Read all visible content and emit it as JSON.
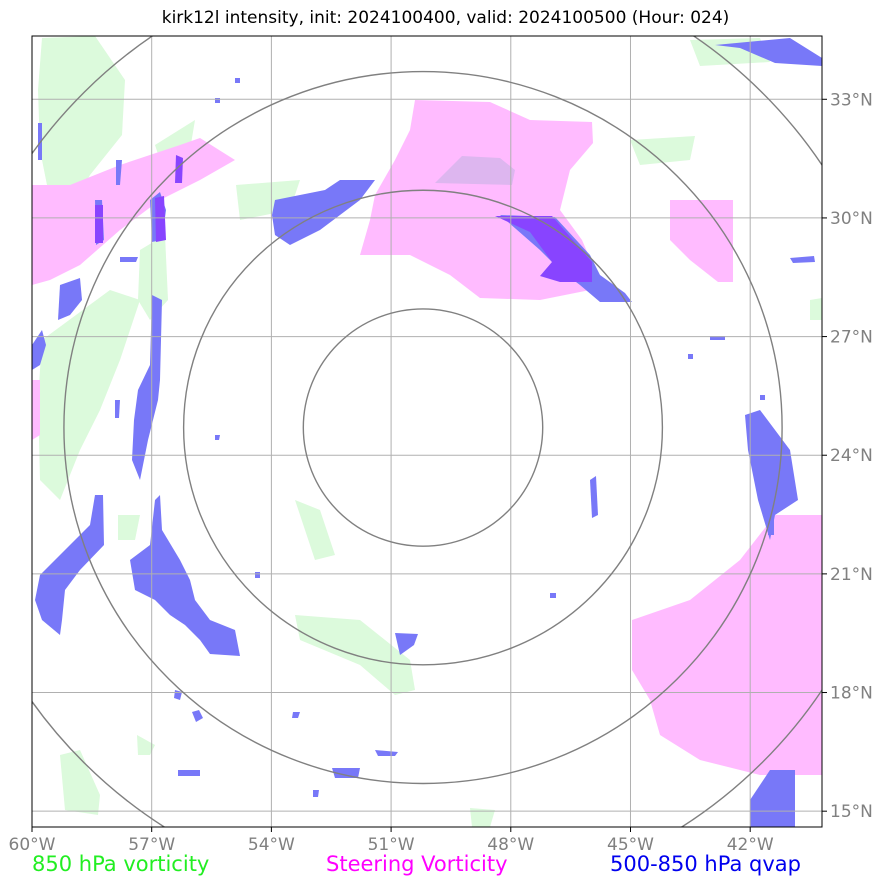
{
  "title": "kirk12l intensity, init: 2024100400, valid: 2024100500 (Hour: 024)",
  "map": {
    "lon_range": [
      -60,
      -40.2
    ],
    "lat_range": [
      14.6,
      34.6
    ],
    "lon_ticks": [
      -60,
      -57,
      -54,
      -51,
      -48,
      -45,
      -42
    ],
    "lat_ticks": [
      15,
      18,
      21,
      24,
      27,
      30,
      33
    ],
    "lon_tick_labels": [
      "60°W",
      "57°W",
      "54°W",
      "51°W",
      "48°W",
      "45°W",
      "42°W"
    ],
    "lat_tick_labels": [
      "15°N",
      "18°N",
      "21°N",
      "24°N",
      "27°N",
      "30°N",
      "33°N"
    ],
    "gridlines": true,
    "storm_center": {
      "lon": -50.2,
      "lat": 24.7
    },
    "range_rings_deg": [
      3,
      6,
      9,
      12
    ]
  },
  "legend": {
    "vorticity_850": {
      "label": "850 hPa vorticity",
      "color": "#22ee22"
    },
    "steering_vorticity": {
      "label": "Steering Vorticity",
      "color": "#ff00ff"
    },
    "qvap": {
      "label": "500-850 hPa qvap",
      "color": "#0000ee"
    }
  },
  "colors": {
    "green_fill": "#dcfadc",
    "pink_fill": "#ffbbff",
    "blue_fill": "#7878f8",
    "purple_fill": "#8844ff",
    "ring": "#808080",
    "grid": "#b0b0b0"
  }
}
